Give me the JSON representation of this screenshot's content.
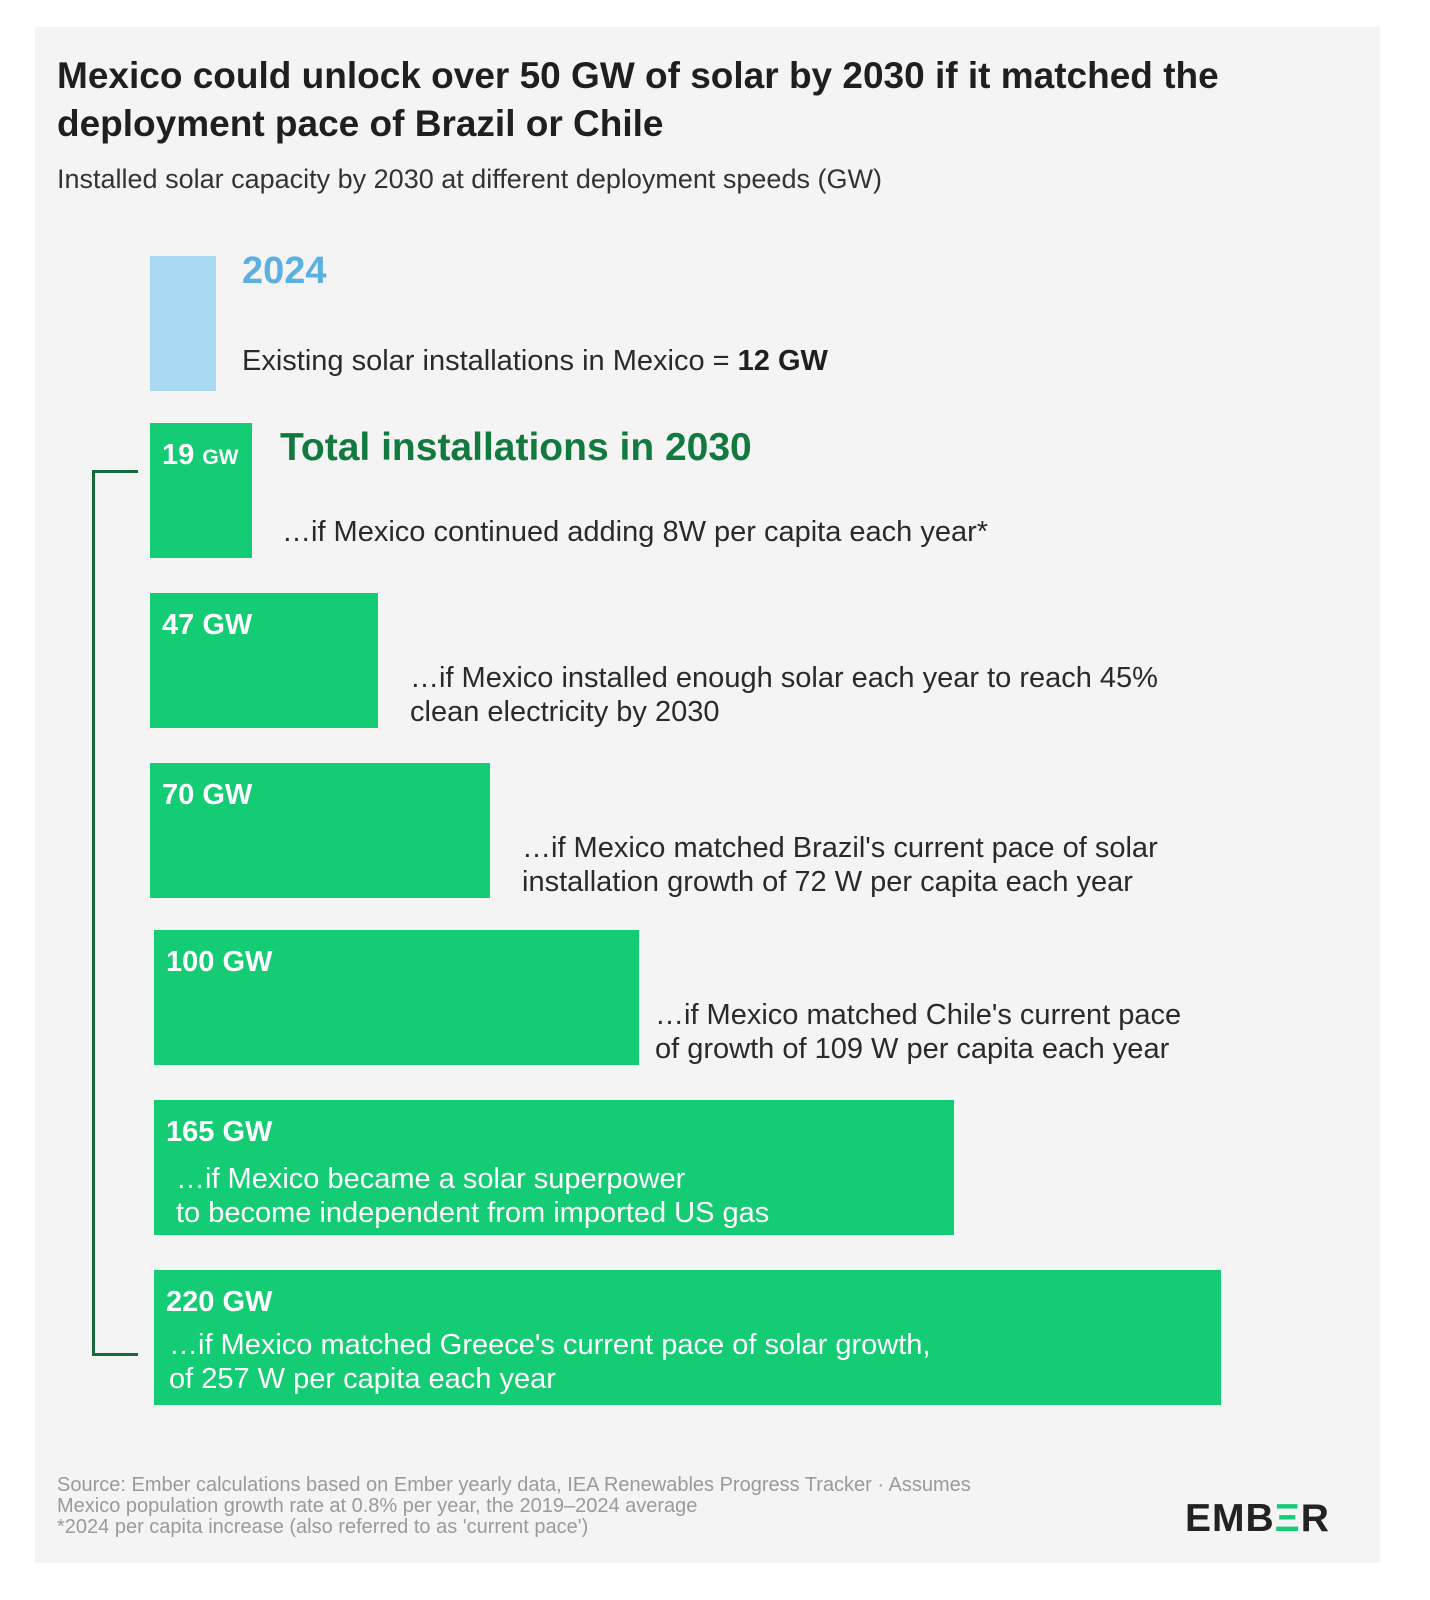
{
  "header": {
    "title": "Mexico could unlock over 50 GW of solar by 2030 if it matched the deployment pace of Brazil or Chile",
    "subtitle": "Installed solar capacity by 2030 at different deployment speeds (GW)"
  },
  "baseline": {
    "year": "2024",
    "text": "Existing solar installations in Mexico = ",
    "value_text": "12 GW"
  },
  "group_title": "Total installations in 2030",
  "chart_data": {
    "type": "bar",
    "orientation": "horizontal",
    "title": "Mexico could unlock over 50 GW of solar by 2030 if it matched the deployment pace of Brazil or Chile",
    "subtitle": "Installed solar capacity by 2030 at different deployment speeds (GW)",
    "unit": "GW",
    "baseline": {
      "label": "2024",
      "value": 12
    },
    "categories": [
      "...if Mexico continued adding 8W per capita each year*",
      "...if Mexico installed enough solar each year to reach 45% clean electricity by 2030",
      "...if Mexico matched Brazil's current pace of solar installation growth of 72  W per capita each year",
      "...if Mexico matched Chile's current pace of growth of 109 W per capita each year",
      "...if Mexico became a solar superpower to become independent from imported US gas",
      "...if Mexico matched Greece's current pace of solar growth, of 257 W per capita each year"
    ],
    "values": [
      19,
      47,
      70,
      100,
      165,
      220
    ],
    "bar_labels": [
      {
        "num": "19",
        "unit": "GW"
      },
      {
        "num": "47",
        "unit": "GW"
      },
      {
        "num": "70",
        "unit": "GW"
      },
      {
        "num": "100",
        "unit": "GW"
      },
      {
        "num": "165",
        "unit": "GW"
      },
      {
        "num": "220",
        "unit": "GW"
      }
    ],
    "descriptions": [
      [
        "…if Mexico continued adding 8W per capita each year*"
      ],
      [
        "…if Mexico installed enough solar each year to reach 45%",
        "clean electricity by 2030"
      ],
      [
        "…if Mexico matched Brazil's current pace of solar",
        "installation growth of 72  W per capita each year"
      ],
      [
        "…if Mexico matched Chile's current pace",
        "of growth of 109 W per capita each year"
      ],
      [
        "…if Mexico became a solar superpower",
        "to become independent from imported US gas"
      ],
      [
        "…if Mexico matched Greece's current pace of solar growth,",
        "of 257 W per capita each year"
      ]
    ]
  },
  "colors": {
    "bar": "#14cc73",
    "baseline_bar": "#a8d8f2",
    "baseline_year": "#5ab0e0",
    "group_title": "#137a3f",
    "background": "#f4f4f4"
  },
  "footer": {
    "lines": [
      "Source: Ember calculations based on Ember yearly data, IEA Renewables Progress Tracker · Assumes",
      "Mexico population growth rate at 0.8% per year, the 2019–2024 average",
      "*2024 per capita increase (also referred to as 'current pace')"
    ],
    "logo": {
      "prefix": "EMB",
      "accent": "Ξ",
      "suffix": "R"
    }
  }
}
